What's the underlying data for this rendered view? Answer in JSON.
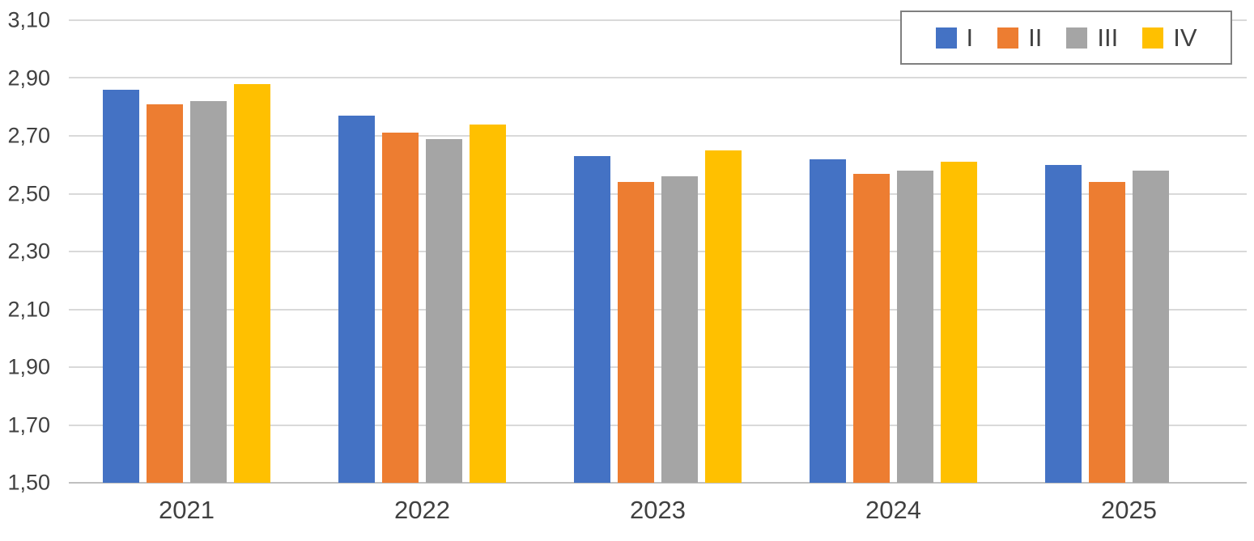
{
  "chart_data": {
    "type": "bar",
    "title": "",
    "xlabel": "",
    "ylabel": "",
    "categories": [
      "2021",
      "2022",
      "2023",
      "2024",
      "2025"
    ],
    "series": [
      {
        "name": "I",
        "color": "#4472C4",
        "values": [
          2.86,
          2.77,
          2.63,
          2.62,
          2.6
        ]
      },
      {
        "name": "II",
        "color": "#ED7D31",
        "values": [
          2.81,
          2.71,
          2.54,
          2.57,
          2.54
        ]
      },
      {
        "name": "III",
        "color": "#A5A5A5",
        "values": [
          2.82,
          2.69,
          2.56,
          2.58,
          2.58
        ]
      },
      {
        "name": "IV",
        "color": "#FFC000",
        "values": [
          2.88,
          2.74,
          2.65,
          2.61,
          null
        ]
      }
    ],
    "ylim": [
      1.5,
      3.1
    ],
    "ytick_step": 0.2,
    "ytick_labels": [
      "1,50",
      "1,70",
      "1,90",
      "2,10",
      "2,30",
      "2,50",
      "2,70",
      "2,90",
      "3,10"
    ],
    "decimal_separator": ",",
    "grid": true,
    "legend_position": "top-right",
    "legend_entries": [
      "I",
      "II",
      "III",
      "IV"
    ]
  },
  "colors": {
    "background": "#FFFFFF",
    "gridline": "#D9D9D9",
    "axis_line": "#C0C0C0",
    "tick_text": "#404040",
    "legend_border": "#7F7F7F"
  }
}
